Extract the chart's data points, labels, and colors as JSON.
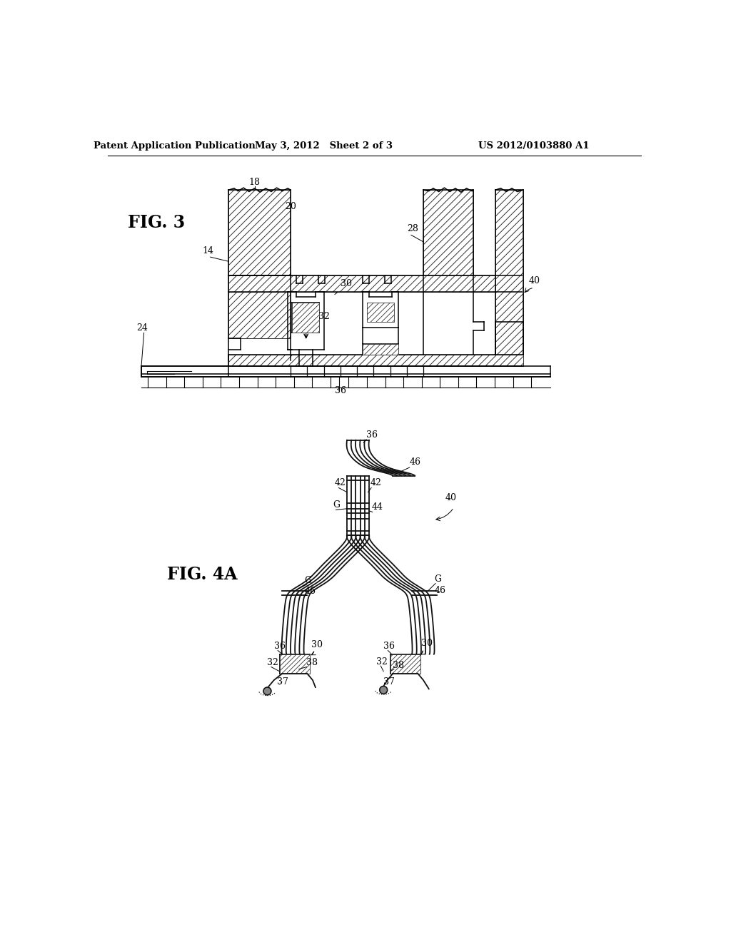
{
  "header_left": "Patent Application Publication",
  "header_mid": "May 3, 2012   Sheet 2 of 3",
  "header_right": "US 2012/0103880 A1",
  "fig3_label": "FIG. 3",
  "fig4a_label": "FIG. 4A",
  "bg_color": "#ffffff",
  "line_color": "#000000"
}
